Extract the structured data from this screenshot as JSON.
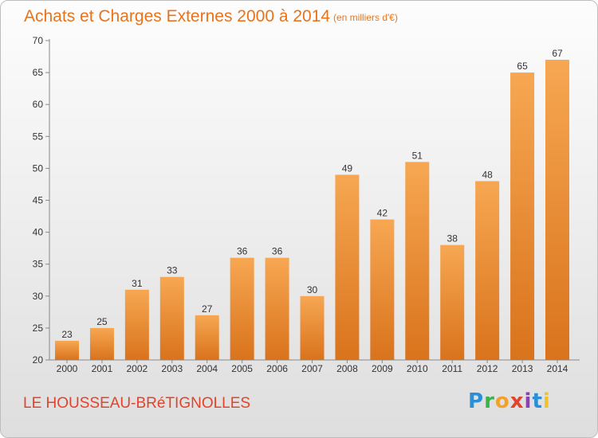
{
  "chart_data": {
    "type": "bar",
    "title": "Achats et Charges Externes 2000 à 2014",
    "subtitle": "(en milliers d'€)",
    "categories": [
      "2000",
      "2001",
      "2002",
      "2003",
      "2004",
      "2005",
      "2006",
      "2007",
      "2008",
      "2009",
      "2010",
      "2011",
      "2012",
      "2013",
      "2014"
    ],
    "values": [
      23,
      25,
      31,
      33,
      27,
      36,
      36,
      30,
      49,
      42,
      51,
      38,
      48,
      65,
      67
    ],
    "ylim": [
      20,
      70
    ],
    "yticks": [
      20,
      25,
      30,
      35,
      40,
      45,
      50,
      55,
      60,
      65,
      70
    ],
    "grid": false,
    "bar_color_top": "#f7a752",
    "bar_color_bottom": "#d9731c",
    "xlabel": "",
    "ylabel": ""
  },
  "commune": "LE HOUSSEAU-BRéTIGNOLLES",
  "logo": {
    "letters": [
      "P",
      "r",
      "o",
      "x",
      "i",
      "t",
      "i"
    ]
  }
}
